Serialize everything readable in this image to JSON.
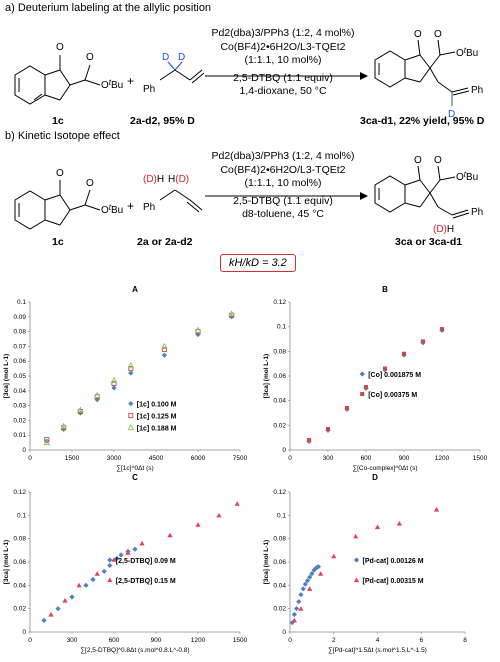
{
  "scheme": {
    "a_heading": "a) Deuterium labeling at the allylic position",
    "b_heading": "b) Kinetic Isotope effect",
    "a_conditions": [
      "Pd2(dba)3/PPh3 (1:2, 4 mol%)",
      "Co(BF4)2•6H2O/L3-TQEt2",
      "(1:1.1, 10 mol%)",
      "2,5-DTBQ (1.1 equiv)",
      "1,4-dioxane, 50 °C"
    ],
    "b_conditions": [
      "Pd2(dba)3/PPh3 (1:2, 4 mol%)",
      "Co(BF4)2•6H2O/L3-TQEt2",
      "(1:1.1, 10 mol%)",
      "2,5-DTBQ (1.1 equiv)",
      "d8-toluene, 45 °C"
    ],
    "a_sm1_label": "1c",
    "a_sm2_label": "2a-d2, 95% D",
    "a_prod_label": "3ca-d1, 22% yield, 95% D",
    "b_sm1_label": "1c",
    "b_sm2_label": "2a or 2a-d2",
    "b_prod_label": "3ca or 3ca-d1",
    "kie": "kH/kD = 3.2",
    "atoms": {
      "OtBu": "OtBu",
      "O": "O",
      "Ph": "Ph",
      "D": "D",
      "H": "H",
      "plus": "+"
    }
  },
  "chart_data": [
    {
      "panel": "A",
      "type": "scatter",
      "title": "A",
      "xlabel": "∑[1c]^0Δt (s)",
      "ylabel": "[3ca] (mol L-1)",
      "xlim": [
        0,
        7500
      ],
      "ylim": [
        0,
        0.1
      ],
      "xticks": [
        0,
        1500,
        3000,
        4500,
        6000,
        7500
      ],
      "yticks": [
        0,
        0.01,
        0.02,
        0.03,
        0.04,
        0.05,
        0.06,
        0.07,
        0.08,
        0.09,
        0.1
      ],
      "legend_position": "bottom-right",
      "series": [
        {
          "name": "[1c] 0.100 M",
          "color": "#4f81bd",
          "marker": "diamond",
          "x": [
            600,
            1200,
            1800,
            2400,
            3000,
            3600,
            4800,
            6000,
            7200
          ],
          "y": [
            0.006,
            0.014,
            0.025,
            0.034,
            0.042,
            0.052,
            0.064,
            0.078,
            0.09
          ]
        },
        {
          "name": "[1c] 0.125 M",
          "color": "#c0504d",
          "marker": "square-open",
          "x": [
            600,
            1200,
            1800,
            2400,
            3000,
            3600,
            4800,
            6000,
            7200
          ],
          "y": [
            0.007,
            0.015,
            0.026,
            0.036,
            0.045,
            0.055,
            0.068,
            0.08,
            0.091
          ]
        },
        {
          "name": "[1c] 0.188 M",
          "color": "#9bbb59",
          "marker": "triangle-open",
          "x": [
            600,
            1200,
            1800,
            2400,
            3000,
            3600,
            4800,
            6000,
            7200
          ],
          "y": [
            0.005,
            0.016,
            0.027,
            0.037,
            0.047,
            0.057,
            0.07,
            0.081,
            0.092
          ]
        }
      ]
    },
    {
      "panel": "B",
      "type": "scatter",
      "title": "B",
      "xlabel": "∑[Co-complex]^0Δt (s)",
      "ylabel": "[3ca] (mol L-1)",
      "xlim": [
        0,
        1500
      ],
      "ylim": [
        0,
        0.12
      ],
      "xticks": [
        0,
        300,
        600,
        900,
        1200,
        1500
      ],
      "yticks": [
        0,
        0.02,
        0.04,
        0.06,
        0.08,
        0.1,
        0.12
      ],
      "legend_position": "right",
      "series": [
        {
          "name": "[Co] 0.001875 M",
          "color": "#4f81bd",
          "marker": "diamond",
          "x": [
            150,
            300,
            450,
            600,
            750,
            900,
            1050,
            1200
          ],
          "y": [
            0.007,
            0.016,
            0.033,
            0.05,
            0.065,
            0.077,
            0.087,
            0.097
          ]
        },
        {
          "name": "[Co] 0.00375 M",
          "color": "#c0504d",
          "marker": "square",
          "x": [
            150,
            300,
            450,
            600,
            750,
            900,
            1050,
            1200
          ],
          "y": [
            0.008,
            0.017,
            0.034,
            0.051,
            0.066,
            0.078,
            0.088,
            0.098
          ]
        }
      ]
    },
    {
      "panel": "C",
      "type": "scatter",
      "title": "C",
      "xlabel": "∑[2,5-DTBQ]^0.8Δt (s.mol^0.8.L^-0.8)",
      "ylabel": "[3ca] (mol L-1)",
      "xlim": [
        0,
        1500
      ],
      "ylim": [
        0,
        0.12
      ],
      "xticks": [
        0,
        300,
        600,
        900,
        1200,
        1500
      ],
      "yticks": [
        0,
        0.02,
        0.04,
        0.06,
        0.08,
        0.1,
        0.12
      ],
      "legend_position": "right",
      "series": [
        {
          "name": "[2,5-DTBQ] 0.09 M",
          "color": "#4f81bd",
          "marker": "diamond",
          "x": [
            100,
            200,
            300,
            400,
            450,
            530,
            570,
            620,
            650,
            700,
            750
          ],
          "y": [
            0.01,
            0.02,
            0.03,
            0.04,
            0.045,
            0.052,
            0.057,
            0.063,
            0.066,
            0.069,
            0.071
          ]
        },
        {
          "name": "[2,5-DTBQ] 0.15 M",
          "color": "#e0435e",
          "marker": "triangle",
          "x": [
            150,
            250,
            350,
            480,
            600,
            700,
            800,
            1000,
            1200,
            1350,
            1480
          ],
          "y": [
            0.015,
            0.027,
            0.04,
            0.05,
            0.062,
            0.068,
            0.076,
            0.083,
            0.092,
            0.1,
            0.11
          ]
        }
      ]
    },
    {
      "panel": "D",
      "type": "scatter",
      "title": "D",
      "xlabel": "∑[Pd-cat]^1.5Δt (s.mol^1.5.L^-1.5)",
      "ylabel": "[3ca] (mol L-1)",
      "xlim": [
        0,
        8
      ],
      "ylim": [
        0,
        0.12
      ],
      "xticks": [
        0,
        2,
        4,
        6,
        8
      ],
      "yticks": [
        0,
        0.02,
        0.04,
        0.06,
        0.08,
        0.1,
        0.12
      ],
      "legend_position": "right",
      "series": [
        {
          "name": "[Pd-cat] 0.00126 M",
          "color": "#4f81bd",
          "marker": "diamond",
          "x": [
            0.1,
            0.2,
            0.3,
            0.4,
            0.5,
            0.6,
            0.7,
            0.8,
            0.9,
            1.0,
            1.1,
            1.2,
            1.3
          ],
          "y": [
            0.008,
            0.015,
            0.02,
            0.026,
            0.032,
            0.037,
            0.041,
            0.044,
            0.047,
            0.05,
            0.053,
            0.055,
            0.056
          ]
        },
        {
          "name": "[Pd-cat] 0.00315 M",
          "color": "#e0435e",
          "marker": "triangle",
          "x": [
            0.2,
            0.5,
            0.9,
            1.4,
            2.0,
            3.0,
            4.0,
            5.0,
            6.7
          ],
          "y": [
            0.01,
            0.02,
            0.037,
            0.05,
            0.065,
            0.082,
            0.09,
            0.093,
            0.105
          ]
        }
      ]
    }
  ]
}
